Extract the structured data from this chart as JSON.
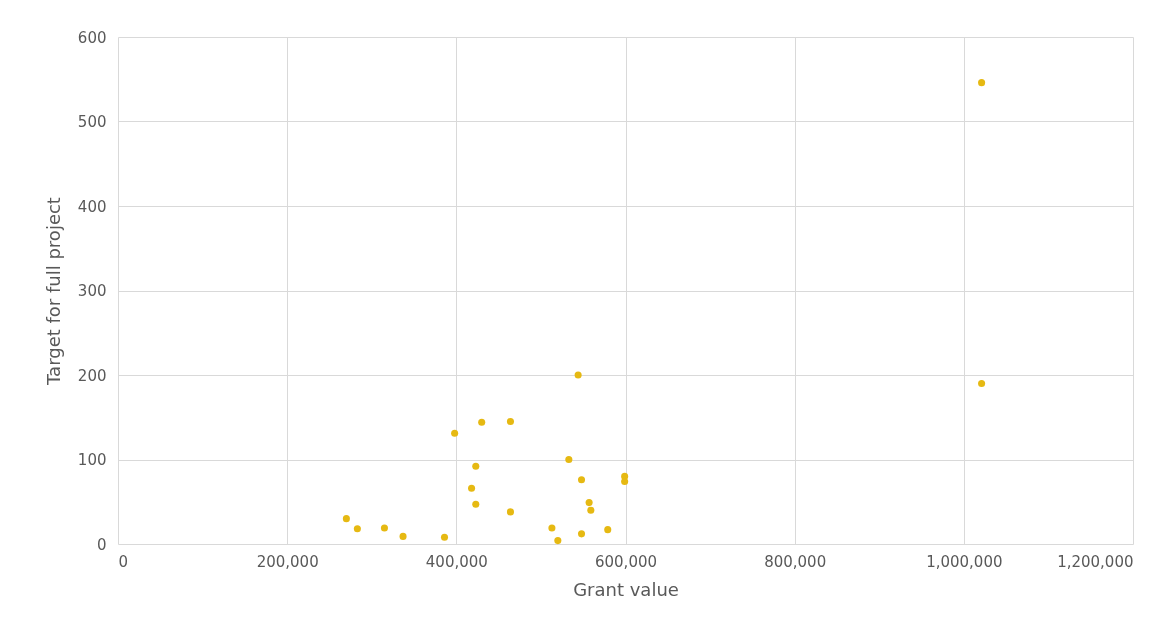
{
  "chart_data": {
    "type": "scatter",
    "xlabel": "Grant value",
    "ylabel": "Target for full project",
    "x": [
      270000,
      283000,
      315000,
      337000,
      386000,
      398000,
      430000,
      464000,
      423000,
      418000,
      423000,
      464000,
      544000,
      533000,
      548000,
      557000,
      559000,
      513000,
      520000,
      548000,
      579000,
      599000,
      599000,
      1021000,
      1021000
    ],
    "series": [
      {
        "color": "#e6b912",
        "values": [
          30,
          18,
          19,
          9,
          8,
          131,
          144,
          145,
          92,
          66,
          47,
          38,
          200,
          100,
          76,
          49,
          40,
          19,
          4,
          12,
          17,
          80,
          74,
          546,
          190
        ]
      }
    ],
    "xlim": [
      0,
      1200000
    ],
    "xticks": [
      0,
      {
        "value": 200000,
        "label": "200,000"
      },
      {
        "value": 400000,
        "label": "400,000"
      },
      {
        "value": 600000,
        "label": "600,000"
      },
      {
        "value": 800000,
        "label": "800,000"
      },
      {
        "value": 1000000,
        "label": "1,000,000"
      },
      {
        "value": 1200000,
        "label": "1,200,000"
      }
    ],
    "ylim": [
      0,
      600
    ],
    "yticks": [
      0,
      100,
      200,
      300,
      400,
      500,
      600
    ],
    "grid": true,
    "marker": "circle"
  }
}
